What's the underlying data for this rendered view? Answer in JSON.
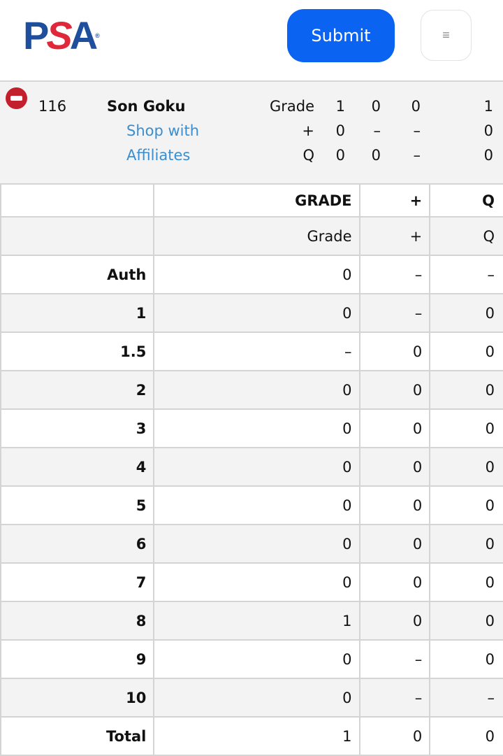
{
  "header": {
    "logo_text": "PSA",
    "submit_label": "Submit",
    "menu_icon": "≡"
  },
  "summary": {
    "number": "116",
    "name": "Son Goku",
    "link_line1": "Shop with",
    "link_line2": "Affiliates",
    "rows": [
      [
        "Grade",
        "1",
        "0",
        "0",
        "1"
      ],
      [
        "+",
        "0",
        "–",
        "–",
        "0"
      ],
      [
        "Q",
        "0",
        "0",
        "–",
        "0"
      ]
    ]
  },
  "table": {
    "headers": [
      "",
      "GRADE",
      "+",
      "Q"
    ],
    "subheaders": [
      "",
      "Grade",
      "+",
      "Q"
    ],
    "rows": [
      [
        "Auth",
        "0",
        "–",
        "–"
      ],
      [
        "1",
        "0",
        "–",
        "0"
      ],
      [
        "1.5",
        "–",
        "0",
        "0"
      ],
      [
        "2",
        "0",
        "0",
        "0"
      ],
      [
        "3",
        "0",
        "0",
        "0"
      ],
      [
        "4",
        "0",
        "0",
        "0"
      ],
      [
        "5",
        "0",
        "0",
        "0"
      ],
      [
        "6",
        "0",
        "0",
        "0"
      ],
      [
        "7",
        "0",
        "0",
        "0"
      ],
      [
        "8",
        "1",
        "0",
        "0"
      ],
      [
        "9",
        "0",
        "–",
        "0"
      ],
      [
        "10",
        "0",
        "–",
        "–"
      ],
      [
        "Total",
        "1",
        "0",
        "0"
      ]
    ]
  },
  "colors": {
    "accent": "#0a63f1",
    "logo_blue": "#1f4e9c",
    "logo_red": "#e0283b",
    "link": "#3a8ed0",
    "remove": "#c3202e"
  }
}
